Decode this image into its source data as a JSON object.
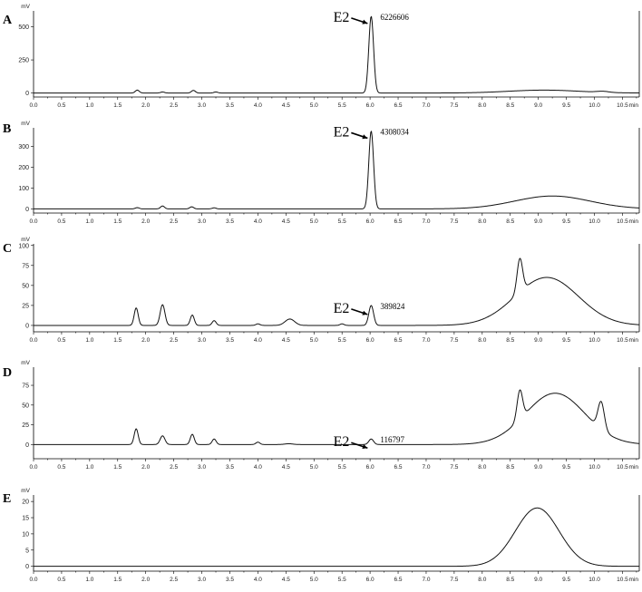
{
  "chart_data": [
    {
      "type": "line",
      "panel": "A",
      "y_unit": "mV",
      "x_unit": "min",
      "xlim": [
        0,
        10.8
      ],
      "ylim": [
        -30,
        620
      ],
      "xticks": [
        "0.0",
        "0.5",
        "1.0",
        "1.5",
        "2.0",
        "2.5",
        "3.0",
        "3.5",
        "4.0",
        "4.5",
        "5.0",
        "5.5",
        "6.0",
        "6.5",
        "7.0",
        "7.5",
        "8.0",
        "8.5",
        "9.0",
        "9.5",
        "10.0",
        "10.5"
      ],
      "yticks": [
        0,
        250,
        500
      ],
      "ytick_labels": [
        "0",
        "250",
        "500"
      ],
      "baseline": 0,
      "peaks": [
        {
          "x": 1.85,
          "y": 22,
          "w": 0.05
        },
        {
          "x": 2.3,
          "y": 8,
          "w": 0.05
        },
        {
          "x": 2.85,
          "y": 20,
          "w": 0.05
        },
        {
          "x": 3.25,
          "y": 8,
          "w": 0.05
        },
        {
          "x": 6.02,
          "y": 580,
          "w": 0.06
        }
      ],
      "humps": [
        {
          "x": 9.1,
          "y": 22,
          "w": 0.9
        },
        {
          "x": 10.15,
          "y": 8,
          "w": 0.15
        }
      ],
      "annotation": {
        "label": "E2",
        "value": "6226606",
        "x": 6.02,
        "y": 580
      }
    },
    {
      "type": "line",
      "panel": "B",
      "y_unit": "mV",
      "x_unit": "min",
      "xlim": [
        0,
        10.8
      ],
      "ylim": [
        -20,
        390
      ],
      "xticks": [
        "0.0",
        "0.5",
        "1.0",
        "1.5",
        "2.0",
        "2.5",
        "3.0",
        "3.5",
        "4.0",
        "4.5",
        "5.0",
        "5.5",
        "6.0",
        "6.5",
        "7.0",
        "7.5",
        "8.0",
        "8.5",
        "9.0",
        "9.5",
        "10.0",
        "10.5"
      ],
      "yticks": [
        0,
        100,
        200,
        300
      ],
      "ytick_labels": [
        "0",
        "100",
        "200",
        "300"
      ],
      "baseline": 0,
      "peaks": [
        {
          "x": 1.85,
          "y": 6,
          "w": 0.05
        },
        {
          "x": 2.3,
          "y": 14,
          "w": 0.05
        },
        {
          "x": 2.82,
          "y": 10,
          "w": 0.05
        },
        {
          "x": 3.22,
          "y": 5,
          "w": 0.05
        },
        {
          "x": 6.02,
          "y": 375,
          "w": 0.06
        }
      ],
      "humps": [
        {
          "x": 9.25,
          "y": 62,
          "w": 0.95
        }
      ],
      "annotation": {
        "label": "E2",
        "value": "4308034",
        "x": 6.02,
        "y": 375
      }
    },
    {
      "type": "line",
      "panel": "C",
      "y_unit": "mV",
      "x_unit": "min",
      "xlim": [
        0,
        10.8
      ],
      "ylim": [
        -8,
        102
      ],
      "xticks": [
        "0.0",
        "0.5",
        "1.0",
        "1.5",
        "2.0",
        "2.5",
        "3.0",
        "3.5",
        "4.0",
        "4.5",
        "5.0",
        "5.5",
        "6.0",
        "6.5",
        "7.0",
        "7.5",
        "8.0",
        "8.5",
        "9.0",
        "9.5",
        "10.0",
        "10.5"
      ],
      "yticks": [
        0,
        25,
        50,
        75,
        100
      ],
      "ytick_labels": [
        "0",
        "25",
        "50",
        "75",
        "100"
      ],
      "baseline": 0,
      "peaks": [
        {
          "x": 1.83,
          "y": 22,
          "w": 0.05
        },
        {
          "x": 2.3,
          "y": 26,
          "w": 0.06
        },
        {
          "x": 2.83,
          "y": 13,
          "w": 0.05
        },
        {
          "x": 3.22,
          "y": 6,
          "w": 0.05
        },
        {
          "x": 4.0,
          "y": 2,
          "w": 0.05
        },
        {
          "x": 4.57,
          "y": 8,
          "w": 0.12
        },
        {
          "x": 5.5,
          "y": 2,
          "w": 0.05
        },
        {
          "x": 6.02,
          "y": 25,
          "w": 0.06
        },
        {
          "x": 8.67,
          "y": 42,
          "w": 0.07
        }
      ],
      "humps": [
        {
          "x": 9.15,
          "y": 60,
          "w": 0.8
        }
      ],
      "annotation": {
        "label": "E2",
        "value": "389824",
        "x": 6.02,
        "y": 25
      }
    },
    {
      "type": "line",
      "panel": "D",
      "y_unit": "mV",
      "x_unit": "min",
      "xlim": [
        0,
        10.8
      ],
      "ylim": [
        -18,
        98
      ],
      "xticks": [
        "0.0",
        "0.5",
        "1.0",
        "1.5",
        "2.0",
        "2.5",
        "3.0",
        "3.5",
        "4.0",
        "4.5",
        "5.0",
        "5.5",
        "6.0",
        "6.5",
        "7.0",
        "7.5",
        "8.0",
        "8.5",
        "9.0",
        "9.5",
        "10.0",
        "10.5"
      ],
      "yticks": [
        0,
        25,
        50,
        75
      ],
      "ytick_labels": [
        "0",
        "25",
        "50",
        "75"
      ],
      "baseline": 0,
      "peaks": [
        {
          "x": 1.83,
          "y": 20,
          "w": 0.05
        },
        {
          "x": 2.3,
          "y": 11,
          "w": 0.06
        },
        {
          "x": 2.83,
          "y": 13,
          "w": 0.05
        },
        {
          "x": 3.22,
          "y": 7,
          "w": 0.05
        },
        {
          "x": 4.0,
          "y": 3,
          "w": 0.05
        },
        {
          "x": 4.55,
          "y": 1,
          "w": 0.1
        },
        {
          "x": 6.02,
          "y": 7,
          "w": 0.06
        },
        {
          "x": 8.67,
          "y": 37,
          "w": 0.07
        },
        {
          "x": 10.12,
          "y": 35,
          "w": 0.08
        }
      ],
      "humps": [
        {
          "x": 9.3,
          "y": 65,
          "w": 0.75
        }
      ],
      "annotation": {
        "label": "E2",
        "value": "116797",
        "x": 6.02,
        "y": 7
      }
    },
    {
      "type": "line",
      "panel": "E",
      "y_unit": "mV",
      "x_unit": "min",
      "xlim": [
        0,
        10.8
      ],
      "ylim": [
        -1.5,
        22
      ],
      "xticks": [
        "0.0",
        "0.5",
        "1.0",
        "1.5",
        "2.0",
        "2.5",
        "3.0",
        "3.5",
        "4.0",
        "4.5",
        "5.0",
        "5.5",
        "6.0",
        "6.5",
        "7.0",
        "7.5",
        "8.0",
        "8.5",
        "9.0",
        "9.5",
        "10.0",
        "10.5"
      ],
      "yticks": [
        0,
        5,
        10,
        15,
        20
      ],
      "ytick_labels": [
        "0",
        "5",
        "10",
        "15",
        "20"
      ],
      "baseline": 0,
      "peaks": [],
      "humps": [
        {
          "x": 8.98,
          "y": 18,
          "w": 0.55
        }
      ]
    }
  ],
  "colors": {
    "trace": "#111111",
    "axis": "#000000",
    "background": "#ffffff"
  }
}
